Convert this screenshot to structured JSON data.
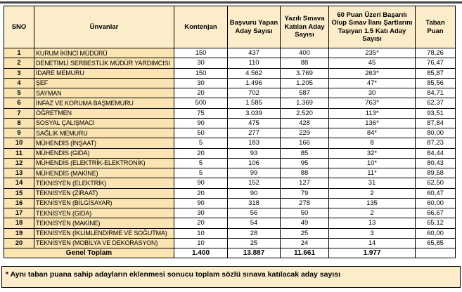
{
  "table": {
    "headers": [
      "SNO",
      "Ünvanlar",
      "Kontenjan",
      "Başvuru Yapan Aday Sayısı",
      "Yazılı Sınava Katılan Aday Sayısı",
      "60 Puan Üzeri Başarılı Olup Sınav İlanı Şartlarını Taşıyan 1.5 Katı Aday Sayısı",
      "Taban Puan"
    ],
    "rows": [
      [
        "1",
        "KURUM İKİNCİ MÜDÜRÜ",
        "150",
        "437",
        "400",
        "235*",
        "78,26"
      ],
      [
        "2",
        "DENETİMLİ SERBESTLİK MÜDÜR YARDIMCISI",
        "30",
        "110",
        "88",
        "45",
        "76,47"
      ],
      [
        "3",
        "İDARE MEMURU",
        "150",
        "4.562",
        "3.769",
        "263*",
        "85,87"
      ],
      [
        "4",
        "ŞEF",
        "30",
        "1.496",
        "1.205",
        "47*",
        "85,56"
      ],
      [
        "5",
        "SAYMAN",
        "20",
        "702",
        "587",
        "30",
        "84,71"
      ],
      [
        "6",
        "İNFAZ VE KORUMA BAŞMEMURU",
        "500",
        "1.585",
        "1.369",
        "763*",
        "62,37"
      ],
      [
        "7",
        "ÖĞRETMEN",
        "75",
        "3.039",
        "2.520",
        "113*",
        "93,51"
      ],
      [
        "8",
        "SOSYAL ÇALIŞMACI",
        "90",
        "475",
        "428",
        "136*",
        "87,84"
      ],
      [
        "9",
        "SAĞLIK MEMURU",
        "50",
        "277",
        "229",
        "84*",
        "80,00"
      ],
      [
        "10",
        "MÜHENDİS (İNŞAAT)",
        "5",
        "183",
        "166",
        "8",
        "87,23"
      ],
      [
        "11",
        "MÜHENDİS (GIDA)",
        "20",
        "93",
        "85",
        "32*",
        "84,44"
      ],
      [
        "12",
        "MÜHENDİS (ELEKTRİK-ELEKTRONİK)",
        "5",
        "106",
        "95",
        "10*",
        "80,43"
      ],
      [
        "13",
        "MÜHENDİS (MAKİNE)",
        "5",
        "99",
        "88",
        "11*",
        "89,58"
      ],
      [
        "14",
        "TEKNİSYEN (ELEKTRİK)",
        "90",
        "152",
        "127",
        "31",
        "62,50"
      ],
      [
        "15",
        "TEKNİSYEN (ZİRAAT)",
        "20",
        "90",
        "79",
        "2",
        "60,47"
      ],
      [
        "16",
        "TEKNİSYEN (BİLGİSAYAR)",
        "90",
        "318",
        "278",
        "135",
        "60,00"
      ],
      [
        "17",
        "TEKNİSYEN (GIDA)",
        "30",
        "56",
        "50",
        "2",
        "66,67"
      ],
      [
        "18",
        "TEKNİSYEN (MAKİNE)",
        "20",
        "54",
        "49",
        "13",
        "65,12"
      ],
      [
        "19",
        "TEKNİSYEN (İKLİMLENDİRME VE SOĞUTMA)",
        "10",
        "28",
        "25",
        "3",
        "60,00"
      ],
      [
        "20",
        "TEKNİSYEN (MOBİLYA VE DEKORASYON)",
        "10",
        "25",
        "24",
        "14",
        "65,85"
      ]
    ],
    "total": {
      "label": "Genel Toplam",
      "values": [
        "1.400",
        "13.887",
        "11.661",
        "1.977",
        ""
      ]
    }
  },
  "footnote": "* Aynı taban puana sahip adayların eklenmesi sonucu toplam sözlü sınava katılacak aday sayısı",
  "colors": {
    "header_bg": "#fbedc9",
    "label_bg": "#f9e4b2",
    "cell_bg": "#ffffff",
    "border": "#000000",
    "top_rule": "#454545"
  }
}
